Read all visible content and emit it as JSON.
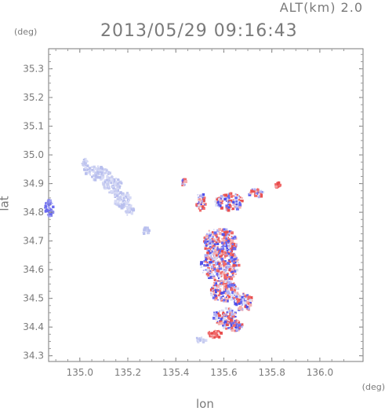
{
  "header": {
    "altitude_label": "ALT(km) 2.0",
    "timestamp": "2013/05/29 09:16:43"
  },
  "chart_data": {
    "type": "heatmap",
    "title": "2013/05/29 09:16:43",
    "xlabel": "lon",
    "ylabel": "lat",
    "x_unit": "(deg)",
    "y_unit": "(deg)",
    "xlim": [
      134.87,
      136.18
    ],
    "ylim": [
      34.28,
      35.37
    ],
    "x_ticks": [
      135.0,
      135.2,
      135.4,
      135.6,
      135.8,
      136.0
    ],
    "x_tick_labels": [
      "135.0",
      "135.2",
      "135.4",
      "135.6",
      "135.8",
      "136.0"
    ],
    "y_ticks": [
      34.3,
      34.4,
      34.5,
      34.6,
      34.7,
      34.8,
      34.9,
      35.0,
      35.1,
      35.2,
      35.3
    ],
    "y_tick_labels": [
      "34.3",
      "34.4",
      "34.5",
      "34.6",
      "34.7",
      "34.8",
      "34.9",
      "35.0",
      "35.1",
      "35.2",
      "35.3"
    ],
    "grid": false,
    "colors": {
      "positive": "#f06a6a",
      "negative": "#6a6af0",
      "weak": "#c8cdf0",
      "axis": "#7a7a7a"
    },
    "regions": [
      {
        "lon": 134.87,
        "lat": 34.82,
        "r_lon": 0.02,
        "r_lat": 0.03,
        "kind": "negative"
      },
      {
        "lon": 135.02,
        "lat": 34.97,
        "r_lon": 0.015,
        "r_lat": 0.02,
        "kind": "weak"
      },
      {
        "lon": 135.07,
        "lat": 34.94,
        "r_lon": 0.05,
        "r_lat": 0.025,
        "kind": "weak"
      },
      {
        "lon": 135.13,
        "lat": 34.9,
        "r_lon": 0.04,
        "r_lat": 0.03,
        "kind": "weak"
      },
      {
        "lon": 135.17,
        "lat": 34.85,
        "r_lon": 0.035,
        "r_lat": 0.03,
        "kind": "weak"
      },
      {
        "lon": 135.2,
        "lat": 34.81,
        "r_lon": 0.02,
        "r_lat": 0.02,
        "kind": "weak"
      },
      {
        "lon": 135.27,
        "lat": 34.74,
        "r_lon": 0.015,
        "r_lat": 0.012,
        "kind": "weak"
      },
      {
        "lon": 135.43,
        "lat": 34.91,
        "r_lon": 0.01,
        "r_lat": 0.015,
        "kind": "mixed"
      },
      {
        "lon": 135.5,
        "lat": 34.84,
        "r_lon": 0.02,
        "r_lat": 0.03,
        "kind": "mixed"
      },
      {
        "lon": 135.62,
        "lat": 34.84,
        "r_lon": 0.06,
        "r_lat": 0.03,
        "kind": "mixed"
      },
      {
        "lon": 135.73,
        "lat": 34.87,
        "r_lon": 0.03,
        "r_lat": 0.015,
        "kind": "mixed"
      },
      {
        "lon": 135.82,
        "lat": 34.9,
        "r_lon": 0.01,
        "r_lat": 0.01,
        "kind": "positive"
      },
      {
        "lon": 135.58,
        "lat": 34.7,
        "r_lon": 0.07,
        "r_lat": 0.05,
        "kind": "mixed"
      },
      {
        "lon": 135.58,
        "lat": 34.62,
        "r_lon": 0.08,
        "r_lat": 0.06,
        "kind": "mixed"
      },
      {
        "lon": 135.6,
        "lat": 34.53,
        "r_lon": 0.06,
        "r_lat": 0.04,
        "kind": "mixed"
      },
      {
        "lon": 135.68,
        "lat": 34.49,
        "r_lon": 0.04,
        "r_lat": 0.03,
        "kind": "mixed"
      },
      {
        "lon": 135.6,
        "lat": 34.44,
        "r_lon": 0.05,
        "r_lat": 0.03,
        "kind": "mixed"
      },
      {
        "lon": 135.63,
        "lat": 34.41,
        "r_lon": 0.04,
        "r_lat": 0.02,
        "kind": "mixed"
      },
      {
        "lon": 135.56,
        "lat": 34.38,
        "r_lon": 0.03,
        "r_lat": 0.012,
        "kind": "positive"
      },
      {
        "lon": 135.5,
        "lat": 34.36,
        "r_lon": 0.02,
        "r_lat": 0.01,
        "kind": "weak"
      }
    ]
  }
}
